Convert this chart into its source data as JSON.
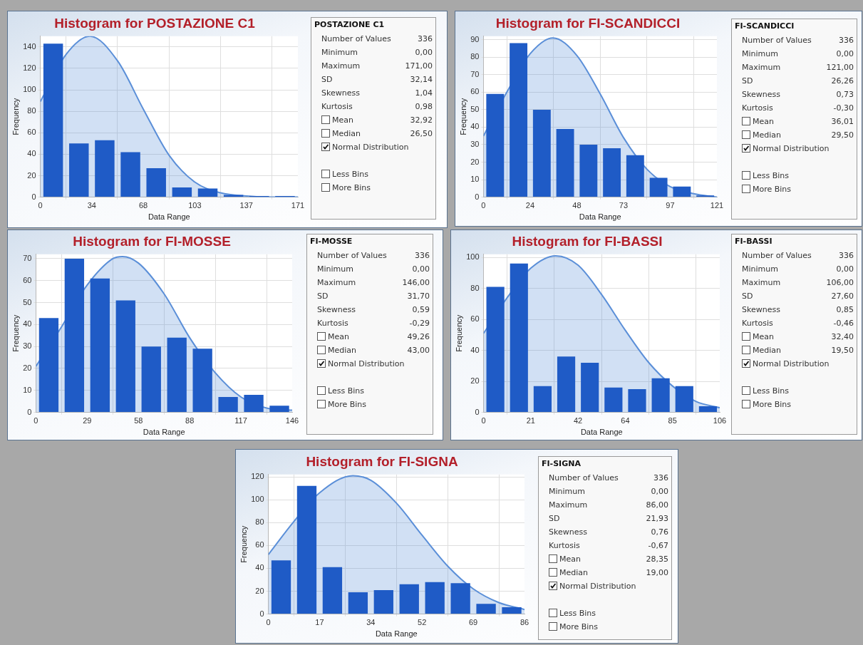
{
  "chart_data": [
    {
      "type": "histogram",
      "title": "Histogram for POSTAZIONE C1",
      "xlabel": "Data Range",
      "ylabel": "Frequency",
      "bins": [
        0,
        17.1,
        34.2,
        51.3,
        68.4,
        85.5,
        102.6,
        119.7,
        136.8,
        153.9,
        171
      ],
      "xlim": [
        0,
        171
      ],
      "xticks": [
        0,
        {
          "value": 34.2,
          "label": "34"
        },
        {
          "value": 68.4,
          "label": "68"
        },
        {
          "value": 102.6,
          "label": "103"
        },
        {
          "value": 136.8,
          "label": "137"
        },
        171
      ],
      "ylim": [
        0,
        150
      ],
      "yticks": [
        0,
        20,
        40,
        60,
        80,
        100,
        120,
        140
      ],
      "grid": true,
      "series": [
        {
          "type": "histogram",
          "color": "#1f5bc6",
          "values": [
            143,
            50,
            53,
            42,
            27,
            9,
            8,
            2,
            1,
            1
          ]
        },
        {
          "type": "area",
          "color": "#5b8fd8",
          "x": [
            0,
            17.1,
            32.9,
            51.3,
            68.4,
            85.5,
            102.6,
            119.7,
            136.8,
            153.9,
            171
          ],
          "values": [
            89,
            133,
            150,
            127,
            82,
            39,
            14,
            4,
            1,
            0,
            0
          ]
        }
      ]
    },
    {
      "type": "other",
      "title": "POSTAZIONE C1",
      "annotations": [
        "Number of Values",
        "336",
        "Minimum",
        "0,00",
        "Maximum",
        "171,00",
        "SD",
        "32,14",
        "Skewness",
        "1,04",
        "Kurtosis",
        "0,98",
        "Mean",
        "32,92",
        "Median",
        "26,50",
        "Normal Distribution",
        "Less Bins",
        "More Bins"
      ]
    },
    {
      "type": "histogram",
      "title": "Histogram for FI-SCANDICCI",
      "xlabel": "Data Range",
      "ylabel": "Frequency",
      "bins": [
        0,
        12.1,
        24.2,
        36.3,
        48.4,
        60.5,
        72.6,
        84.7,
        96.8,
        108.9,
        121
      ],
      "xlim": [
        0,
        121
      ],
      "xticks": [
        0,
        {
          "value": 24.2,
          "label": "24"
        },
        {
          "value": 48.4,
          "label": "48"
        },
        {
          "value": 72.6,
          "label": "73"
        },
        {
          "value": 96.8,
          "label": "97"
        },
        121
      ],
      "ylim": [
        0,
        92
      ],
      "yticks": [
        0,
        10,
        20,
        30,
        40,
        50,
        60,
        70,
        80,
        90
      ],
      "grid": true,
      "series": [
        {
          "type": "histogram",
          "color": "#1f5bc6",
          "values": [
            59,
            88,
            50,
            39,
            30,
            28,
            24,
            11,
            6,
            1
          ]
        },
        {
          "type": "area",
          "color": "#5b8fd8",
          "x": [
            0,
            12.1,
            24.2,
            36,
            48.4,
            60.5,
            72.6,
            84.7,
            96.8,
            108.9,
            121
          ],
          "values": [
            35,
            60,
            82,
            91,
            81,
            59,
            34,
            16,
            6,
            2,
            0
          ]
        }
      ]
    },
    {
      "type": "other",
      "title": "FI-SCANDICCI",
      "annotations": [
        "Number of Values",
        "336",
        "Minimum",
        "0,00",
        "Maximum",
        "121,00",
        "SD",
        "26,26",
        "Skewness",
        "0,73",
        "Kurtosis",
        "-0,30",
        "Mean",
        "36,01",
        "Median",
        "29,50",
        "Normal Distribution",
        "Less Bins",
        "More Bins"
      ]
    },
    {
      "type": "histogram",
      "title": "Histogram for FI-MOSSE",
      "xlabel": "Data Range",
      "ylabel": "Frequency",
      "bins": [
        0,
        14.6,
        29.2,
        43.8,
        58.4,
        73,
        87.6,
        102.2,
        116.8,
        131.4,
        146
      ],
      "xlim": [
        0,
        146
      ],
      "xticks": [
        0,
        {
          "value": 29.2,
          "label": "29"
        },
        {
          "value": 58.4,
          "label": "58"
        },
        {
          "value": 87.6,
          "label": "88"
        },
        {
          "value": 116.8,
          "label": "117"
        },
        146
      ],
      "ylim": [
        0,
        72
      ],
      "yticks": [
        0,
        10,
        20,
        30,
        40,
        50,
        60,
        70
      ],
      "grid": true,
      "series": [
        {
          "type": "histogram",
          "color": "#1f5bc6",
          "values": [
            43,
            70,
            61,
            51,
            30,
            34,
            29,
            7,
            8,
            3
          ]
        },
        {
          "type": "area",
          "color": "#5b8fd8",
          "x": [
            0,
            14.6,
            29.2,
            43.8,
            49.3,
            58.4,
            73,
            87.6,
            102.2,
            116.8,
            131.4,
            146
          ],
          "values": [
            21,
            39,
            58,
            70,
            71,
            68,
            54,
            34,
            18,
            7,
            2,
            1
          ]
        }
      ]
    },
    {
      "type": "other",
      "title": "FI-MOSSE",
      "annotations": [
        "Number of Values",
        "336",
        "Minimum",
        "0,00",
        "Maximum",
        "146,00",
        "SD",
        "31,70",
        "Skewness",
        "0,59",
        "Kurtosis",
        "-0,29",
        "Mean",
        "49,26",
        "Median",
        "43,00",
        "Normal Distribution",
        "Less Bins",
        "More Bins"
      ]
    },
    {
      "type": "histogram",
      "title": "Histogram for FI-BASSI",
      "xlabel": "Data Range",
      "ylabel": "Frequency",
      "bins": [
        0,
        10.6,
        21.2,
        31.8,
        42.4,
        53,
        63.6,
        74.2,
        84.8,
        95.4,
        106
      ],
      "xlim": [
        0,
        106
      ],
      "xticks": [
        0,
        {
          "value": 21.2,
          "label": "21"
        },
        {
          "value": 42.4,
          "label": "42"
        },
        {
          "value": 63.6,
          "label": "64"
        },
        {
          "value": 84.8,
          "label": "85"
        },
        106
      ],
      "ylim": [
        0,
        102
      ],
      "yticks": [
        0,
        20,
        40,
        60,
        80,
        100
      ],
      "grid": true,
      "series": [
        {
          "type": "histogram",
          "color": "#1f5bc6",
          "values": [
            81,
            96,
            17,
            36,
            32,
            16,
            15,
            22,
            17,
            4
          ]
        },
        {
          "type": "area",
          "color": "#5b8fd8",
          "x": [
            0,
            10.6,
            21.2,
            32.4,
            42.4,
            53,
            63.6,
            74.2,
            84.8,
            95.4,
            106
          ],
          "values": [
            51,
            74,
            93,
            101,
            95,
            76,
            53,
            32,
            17,
            7,
            3
          ]
        }
      ]
    },
    {
      "type": "other",
      "title": "FI-BASSI",
      "annotations": [
        "Number of Values",
        "336",
        "Minimum",
        "0,00",
        "Maximum",
        "106,00",
        "SD",
        "27,60",
        "Skewness",
        "0,85",
        "Kurtosis",
        "-0,46",
        "Mean",
        "32,40",
        "Median",
        "19,50",
        "Normal Distribution",
        "Less Bins",
        "More Bins"
      ]
    },
    {
      "type": "histogram",
      "title": "Histogram for FI-SIGNA",
      "xlabel": "Data Range",
      "ylabel": "Frequency",
      "bins": [
        0,
        8.6,
        17.2,
        25.8,
        34.4,
        43,
        51.6,
        60.2,
        68.8,
        77.4,
        86
      ],
      "xlim": [
        0,
        86
      ],
      "xticks": [
        0,
        {
          "value": 17.2,
          "label": "17"
        },
        {
          "value": 34.4,
          "label": "34"
        },
        {
          "value": 51.6,
          "label": "52"
        },
        {
          "value": 68.8,
          "label": "69"
        },
        86
      ],
      "ylim": [
        0,
        122
      ],
      "yticks": [
        0,
        20,
        40,
        60,
        80,
        100,
        120
      ],
      "grid": true,
      "series": [
        {
          "type": "histogram",
          "color": "#1f5bc6",
          "values": [
            47,
            112,
            41,
            19,
            21,
            26,
            28,
            27,
            9,
            6
          ]
        },
        {
          "type": "area",
          "color": "#5b8fd8",
          "x": [
            0,
            8.6,
            17.2,
            28.4,
            34.4,
            43,
            51.6,
            60.2,
            68.8,
            77.4,
            86
          ],
          "values": [
            52,
            81,
            106,
            121,
            117,
            97,
            69,
            42,
            22,
            10,
            4
          ]
        }
      ]
    },
    {
      "type": "other",
      "title": "FI-SIGNA",
      "annotations": [
        "Number of Values",
        "336",
        "Minimum",
        "0,00",
        "Maximum",
        "86,00",
        "SD",
        "21,93",
        "Skewness",
        "0,76",
        "Kurtosis",
        "-0,67",
        "Mean",
        "28,35",
        "Median",
        "19,00",
        "Normal Distribution",
        "Less Bins",
        "More Bins"
      ]
    }
  ]
}
